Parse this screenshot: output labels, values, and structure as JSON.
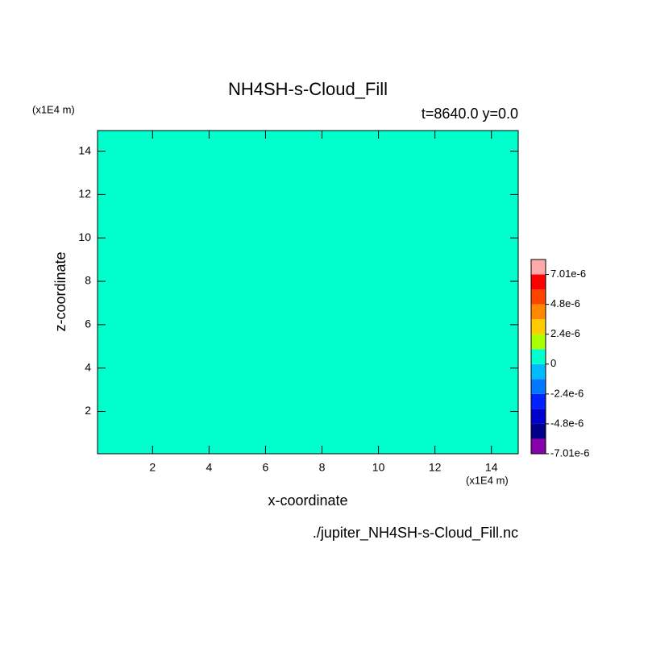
{
  "chart_data": {
    "type": "contour",
    "title": "NH4SH-s-Cloud_Fill",
    "subtitle": "t=8640.0 y=0.0",
    "x_label": "x-coordinate",
    "y_label": "z-coordinate",
    "x_unit": "(x1E4 m)",
    "y_unit": "(x1E4 m)",
    "source": "./jupiter_NH4SH-s-Cloud_Fill.nc",
    "xlim": [
      0.05,
      14.95
    ],
    "ylim": [
      0.05,
      14.95
    ],
    "xticks": [
      2,
      4,
      6,
      8,
      10,
      12,
      14
    ],
    "yticks": [
      2,
      4,
      6,
      8,
      10,
      12,
      14
    ],
    "background_level": 6,
    "colorbar": {
      "levels": [
        -7.01e-06,
        -6e-06,
        -4.8e-06,
        -3.6e-06,
        -2.4e-06,
        -1.2e-06,
        0,
        1.2e-06,
        2.4e-06,
        3.6e-06,
        4.8e-06,
        6e-06,
        7.01e-06
      ],
      "colors": [
        "#8800aa",
        "#000088",
        "#0000cc",
        "#0022ff",
        "#0077ff",
        "#00bbff",
        "#00ffcc",
        "#aaff00",
        "#ffcc00",
        "#ff8800",
        "#ff4400",
        "#ff0000",
        "#ffaaaa"
      ],
      "ticks": [
        {
          "value": -7.01e-06,
          "label": "-7.01e-6"
        },
        {
          "value": -4.8e-06,
          "label": "-4.8e-6"
        },
        {
          "value": -2.4e-06,
          "label": "-2.4e-6"
        },
        0,
        {
          "value": 2.4e-06,
          "label": "2.4e-6"
        },
        {
          "value": 4.8e-06,
          "label": "4.8e-6"
        },
        {
          "value": 7.01e-06,
          "label": "7.01e-6"
        }
      ]
    }
  }
}
